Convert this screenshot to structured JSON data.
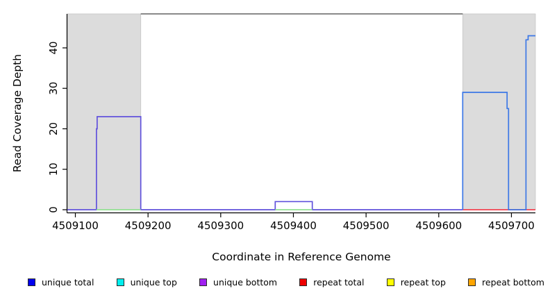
{
  "chart_data": {
    "type": "line",
    "subtype": "step-coverage",
    "title": "",
    "xlabel": "Coordinate in Reference Genome",
    "ylabel": "Read Coverage Depth",
    "xlim": [
      4509089,
      4509733
    ],
    "ylim": [
      0,
      48.4
    ],
    "x_ticks": [
      4509100,
      4509200,
      4509300,
      4509400,
      4509500,
      4509600,
      4509700
    ],
    "y_ticks": [
      0,
      10,
      20,
      30,
      40
    ],
    "grid": false,
    "legend_position": "bottom",
    "repeat_regions": [
      {
        "from": 4509089,
        "to": 4509190
      },
      {
        "from": 4509633,
        "to": 4509733
      }
    ],
    "top_boundary_line": {
      "x_from": 4509190,
      "x_to": 4509633
    },
    "series": [
      {
        "name": "unique-bottom-coverage",
        "color": "#6152DC",
        "points": [
          [
            4509089,
            0
          ],
          [
            4509129,
            0
          ],
          [
            4509129,
            20
          ],
          [
            4509130,
            20
          ],
          [
            4509130,
            23
          ],
          [
            4509190,
            23
          ],
          [
            4509190,
            0
          ],
          [
            4509375,
            0
          ],
          [
            4509375,
            2
          ],
          [
            4509426,
            2
          ],
          [
            4509426,
            0
          ],
          [
            4509633,
            0
          ]
        ]
      },
      {
        "name": "unique-top-baseline-left",
        "color": "#90E090",
        "points": [
          [
            4509129,
            0
          ],
          [
            4509190,
            0
          ]
        ]
      },
      {
        "name": "unique-top-baseline-mid",
        "color": "#90E090",
        "points": [
          [
            4509375,
            0
          ],
          [
            4509426,
            0
          ]
        ]
      },
      {
        "name": "repeat-total-baseline",
        "color": "#F2404E",
        "points": [
          [
            4509633,
            0
          ],
          [
            4509733,
            0
          ]
        ]
      },
      {
        "name": "unique-total-coverage",
        "color": "#3C78E6",
        "points": [
          [
            4509633,
            0
          ],
          [
            4509633,
            29
          ],
          [
            4509694,
            29
          ],
          [
            4509694,
            25
          ],
          [
            4509696,
            25
          ],
          [
            4509696,
            0
          ],
          [
            4509720,
            0
          ],
          [
            4509720,
            42
          ],
          [
            4509723,
            42
          ],
          [
            4509723,
            43
          ],
          [
            4509733,
            43
          ]
        ]
      }
    ],
    "colors": {
      "repeat_region_fill": "#DCDCDC",
      "repeat_region_edge": "#C6C6C6",
      "boundary_line": "#787878",
      "axis": "#000000"
    }
  },
  "legend": {
    "items": [
      {
        "label": "unique total",
        "color": "#0000EE"
      },
      {
        "label": "unique top",
        "color": "#00EEEE"
      },
      {
        "label": "unique bottom",
        "color": "#A020F0"
      },
      {
        "label": "repeat total",
        "color": "#EE0000"
      },
      {
        "label": "repeat top",
        "color": "#FFFF00"
      },
      {
        "label": "repeat bottom",
        "color": "#FFA500"
      }
    ]
  }
}
